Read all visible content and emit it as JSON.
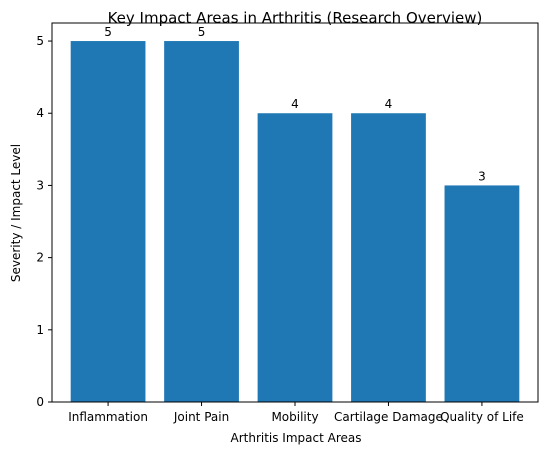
{
  "chart_data": {
    "type": "bar",
    "title": "Key Impact Areas in Arthritis (Research Overview)",
    "xlabel": "Arthritis Impact Areas",
    "ylabel": "Severity / Impact Level",
    "categories": [
      "Inflammation",
      "Joint Pain",
      "Mobility",
      "Cartilage Damage",
      "Quality of Life"
    ],
    "values": [
      5,
      5,
      4,
      4,
      3
    ],
    "data_labels": [
      "5",
      "5",
      "4",
      "4",
      "3"
    ],
    "ylim": [
      0,
      5.25
    ],
    "yticks": [
      0,
      1,
      2,
      3,
      4,
      5
    ],
    "grid": false,
    "legend": "none",
    "bar_color": "#1f77b4"
  }
}
